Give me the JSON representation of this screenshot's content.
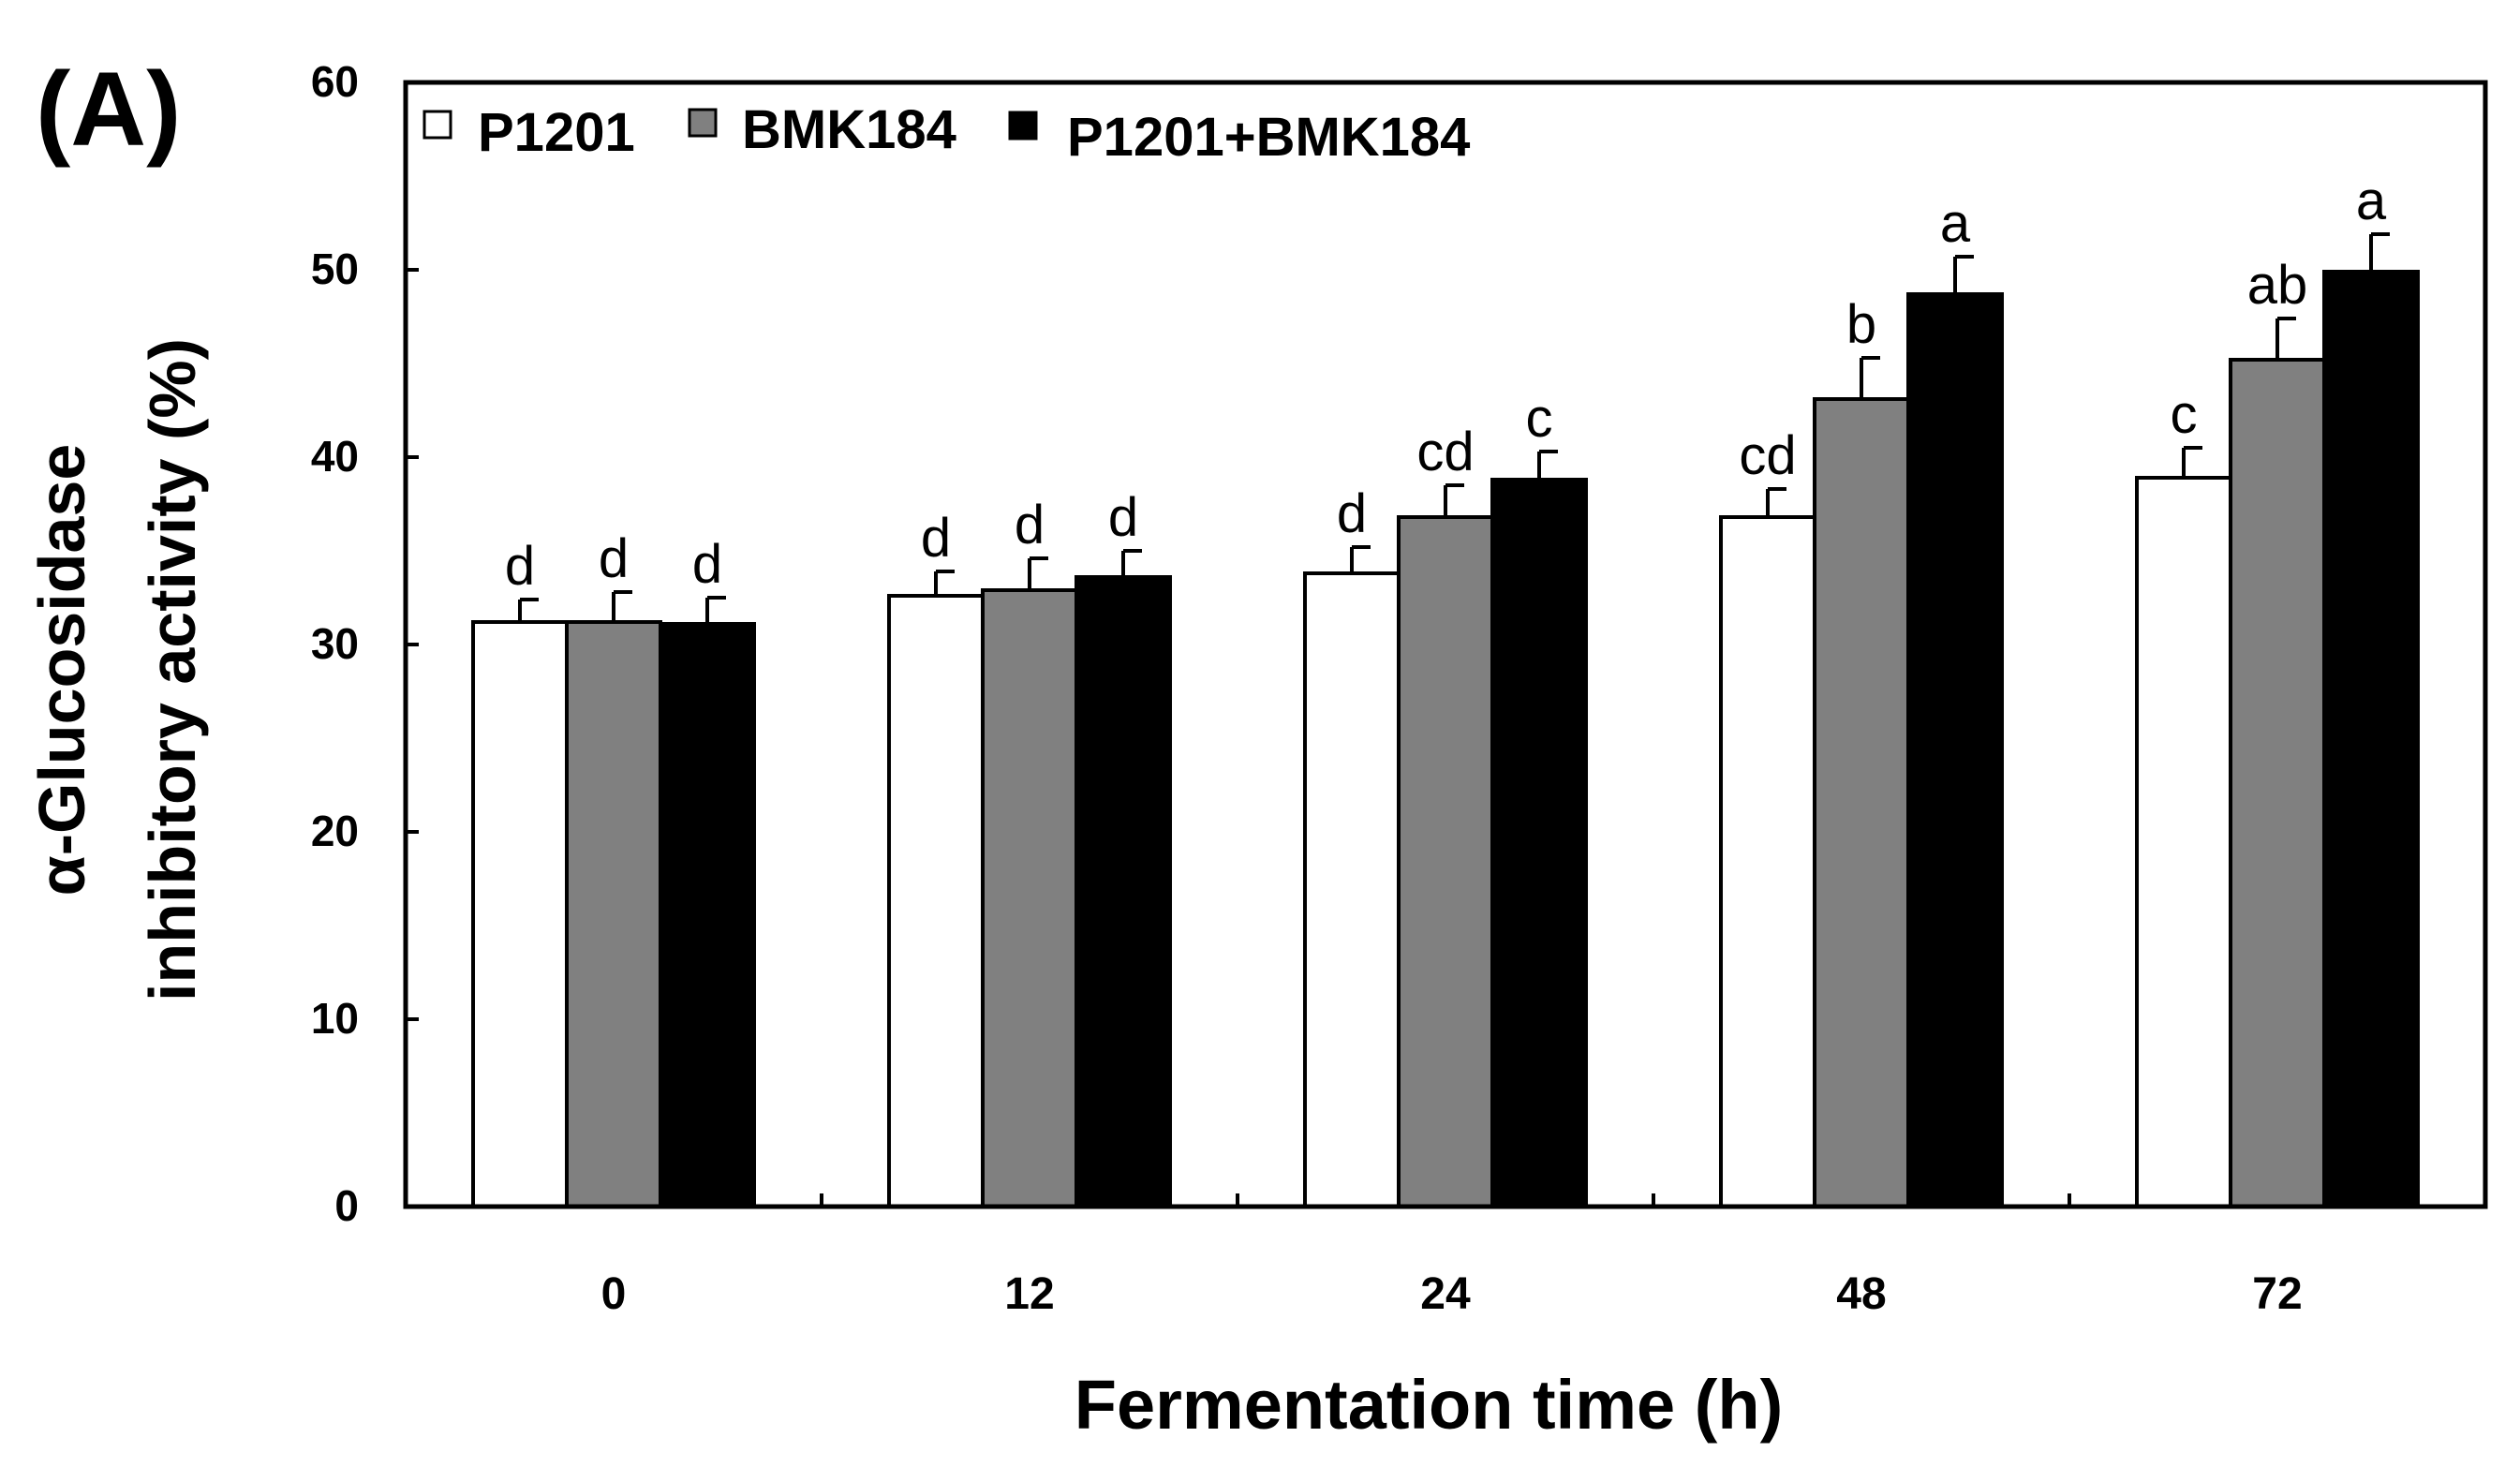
{
  "panel_label": "(A)",
  "chart_data": {
    "type": "bar",
    "xlabel": "Fermentation time (h)",
    "ylabel_lines": [
      "α-Glucosidase",
      "inhibitory activity (%)"
    ],
    "ylim": [
      0,
      60
    ],
    "yticks": [
      0,
      10,
      20,
      30,
      40,
      50,
      60
    ],
    "categories": [
      "0",
      "12",
      "24",
      "48",
      "72"
    ],
    "legend_position": "top-left",
    "series": [
      {
        "name": "P1201",
        "color": "#ffffff",
        "values": [
          31.2,
          32.6,
          33.8,
          36.8,
          38.9
        ],
        "errors": [
          1.2,
          1.3,
          1.4,
          1.5,
          1.6
        ],
        "letters": [
          "d",
          "d",
          "d",
          "cd",
          "c"
        ]
      },
      {
        "name": "BMK184",
        "color": "#808080",
        "values": [
          31.2,
          32.9,
          36.8,
          43.1,
          45.2
        ],
        "errors": [
          1.6,
          1.7,
          1.7,
          2.2,
          2.2
        ],
        "letters": [
          "d",
          "d",
          "cd",
          "b",
          "ab"
        ]
      },
      {
        "name": "P1201+BMK184",
        "color": "#000000",
        "values": [
          31.1,
          33.6,
          38.8,
          48.7,
          49.9
        ],
        "errors": [
          1.4,
          1.4,
          1.5,
          2.0,
          2.0
        ],
        "letters": [
          "d",
          "d",
          "c",
          "a",
          "a"
        ]
      }
    ]
  }
}
